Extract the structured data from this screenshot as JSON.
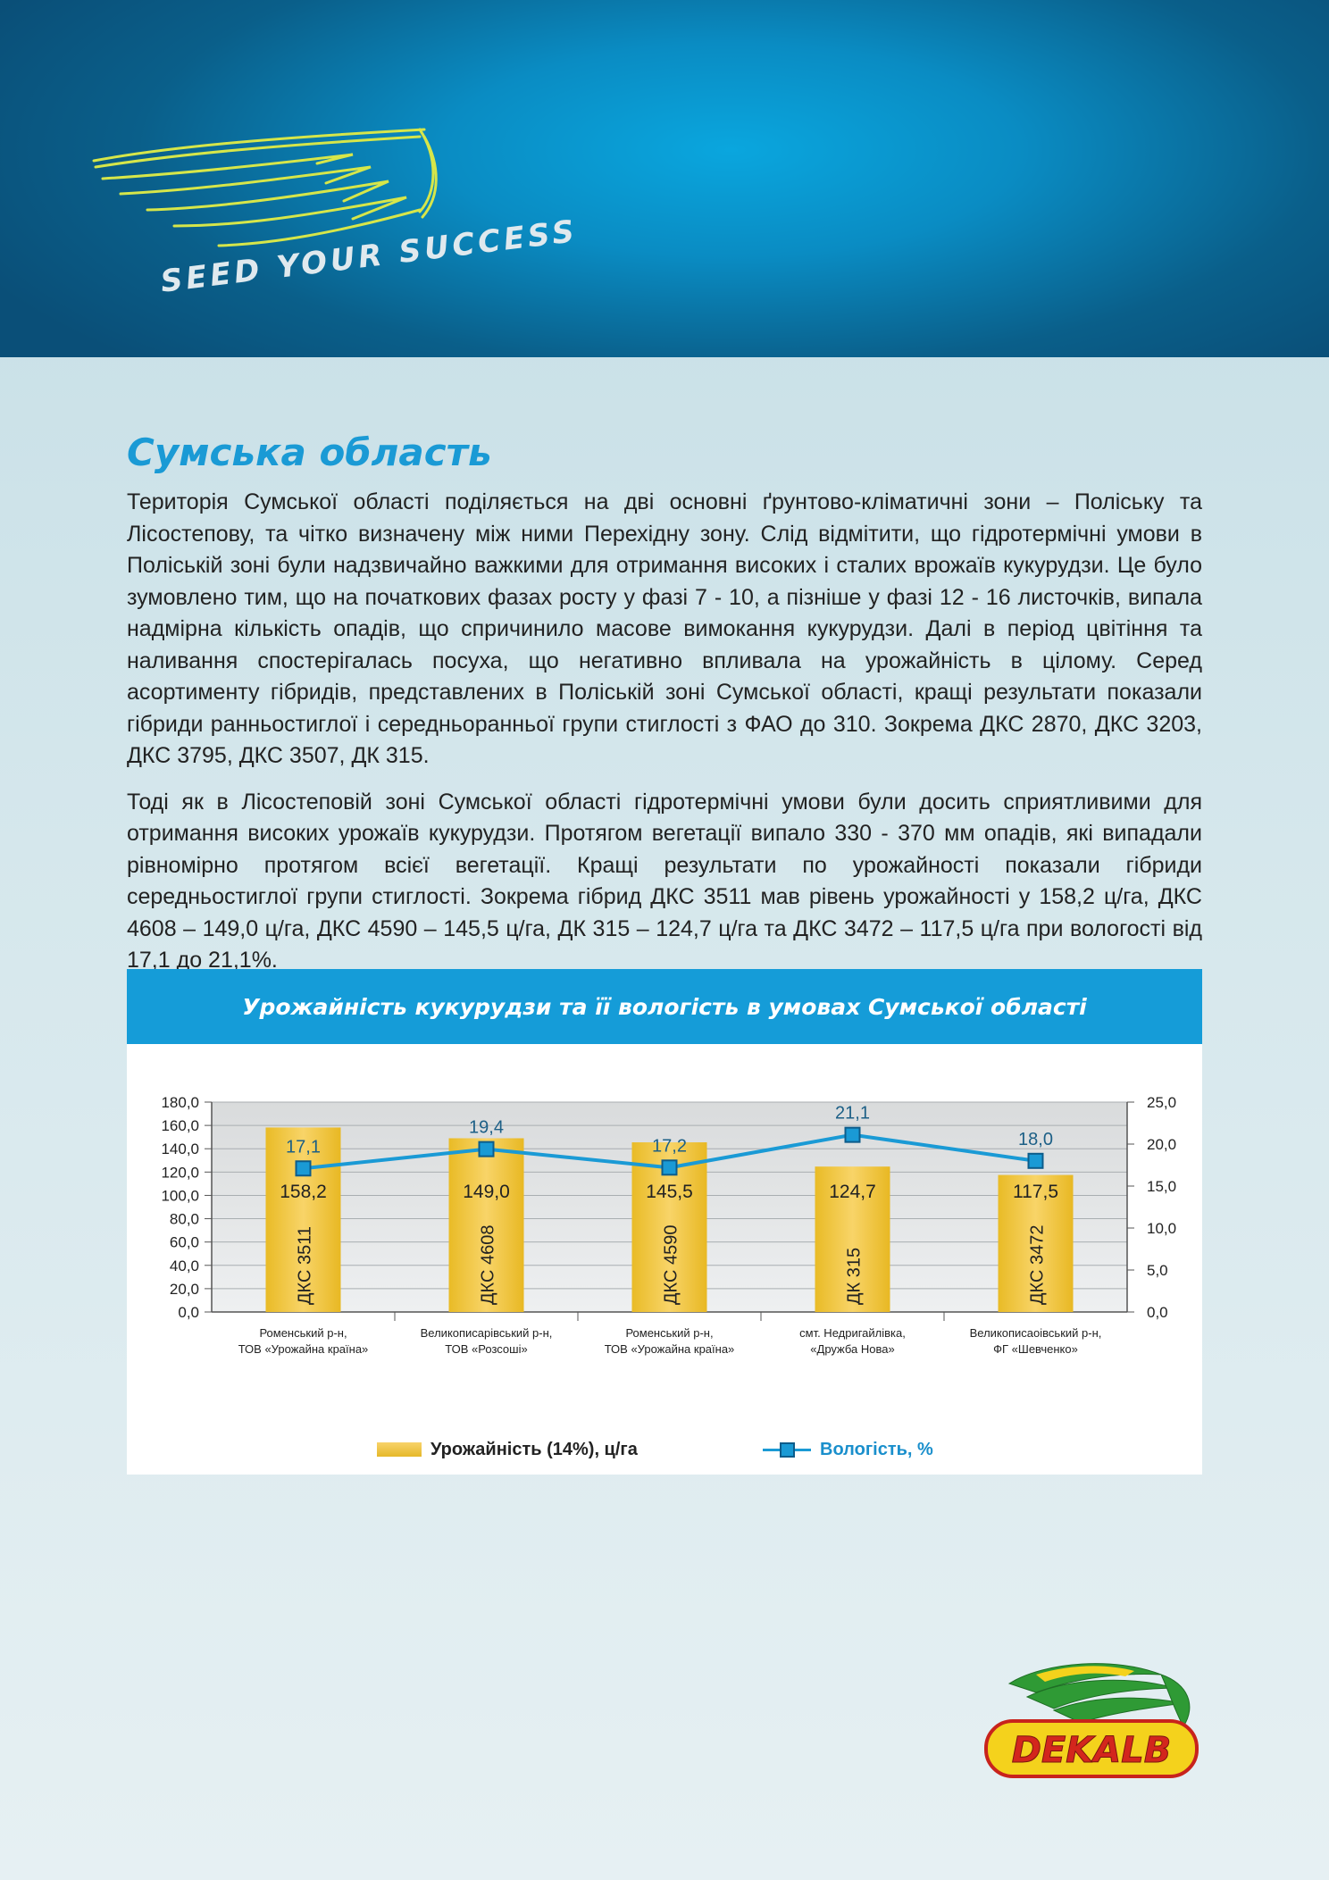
{
  "banner": {
    "tagline": "SEED YOUR SUCCESS"
  },
  "article": {
    "title": "Сумська область",
    "paragraphs": [
      "Територія Сумської області поділяється на дві основні ґрунтово-кліматичні зони – Поліську та Лісостепову, та чітко визначену між ними Перехідну зону. Слід відмітити, що гідротермічні умови в Поліській зоні були надзвичайно важкими для отримання високих і сталих врожаїв кукурудзи. Це було зумовлено тим, що на початкових фазах росту у фазі 7 - 10, а пізніше у фазі 12 - 16 листочків, випала надмірна кількість опадів, що спричинило масове вимокання кукурудзи. Далі в період цвітіння та наливання спостерігалась посуха, що негативно впливала на урожайність в цілому. Серед асортименту гібридів, представлених в Поліській зоні Сумської області, кращі результати показали гібриди ранньостиглої і середньоранньої групи стиглості з ФАО до 310. Зокрема ДКС 2870, ДКС 3203, ДКС 3795, ДКС 3507, ДК 315.",
      "Тоді як в Лісостеповій зоні Сумської області гідротермічні умови були досить сприятливими для отримання високих урожаїв кукурудзи. Протягом вегетації випало 330 - 370 мм опадів, які випадали рівномірно протягом всієї вегетації. Кращі результати по урожайності показали гібриди середньостиглої групи стиглості. Зокрема гібрид ДКС 3511 мав рівень урожайності у 158,2 ц/га, ДКС 4608 – 149,0 ц/га, ДКС 4590 – 145,5 ц/га, ДК 315 – 124,7 ц/га та ДКС 3472 – 117,5 ц/га при вологості від 17,1 до 21,1%."
    ]
  },
  "chart_data": {
    "type": "bar",
    "title": "Урожайність кукурудзи та її вологість в умовах Сумської області",
    "categories": [
      [
        "Роменський р-н,",
        "ТОВ «Урожайна країна»"
      ],
      [
        "Великописарівський р-н,",
        "ТОВ «Розсоші»"
      ],
      [
        "Роменський р-н,",
        "ТОВ «Урожайна країна»"
      ],
      [
        "смт. Недригайлівка,",
        "«Дружба Нова»"
      ],
      [
        "Великописаоівський р-н,",
        "ФГ «Шевченко»"
      ]
    ],
    "hybrids": [
      "ДКС 3511",
      "ДКС 4608",
      "ДКС 4590",
      "ДК 315",
      "ДКС 3472"
    ],
    "series": [
      {
        "name": "Урожайність (14%), ц/га",
        "type": "bar",
        "axis": "left",
        "color": "#f0c53e",
        "values": [
          158.2,
          149.0,
          145.5,
          124.7,
          117.5
        ],
        "labels": [
          "158,2",
          "149,0",
          "145,5",
          "124,7",
          "117,5"
        ]
      },
      {
        "name": "Вологість, %",
        "type": "line",
        "axis": "right",
        "color": "#1a9ad5",
        "values": [
          17.1,
          19.4,
          17.2,
          21.1,
          18.0
        ],
        "labels": [
          "17,1",
          "19,4",
          "17,2",
          "21,1",
          "18,0"
        ]
      }
    ],
    "y_left": {
      "min": 0,
      "max": 180,
      "ticks": [
        "0,0",
        "20,0",
        "40,0",
        "60,0",
        "80,0",
        "100,0",
        "120,0",
        "140,0",
        "160,0",
        "180,0"
      ]
    },
    "y_right": {
      "min": 0,
      "max": 25,
      "ticks": [
        "0,0",
        "5,0",
        "10,0",
        "15,0",
        "20,0",
        "25,0"
      ]
    },
    "grid": true,
    "legend_position": "bottom"
  },
  "logo": {
    "text": "DEKALB"
  }
}
